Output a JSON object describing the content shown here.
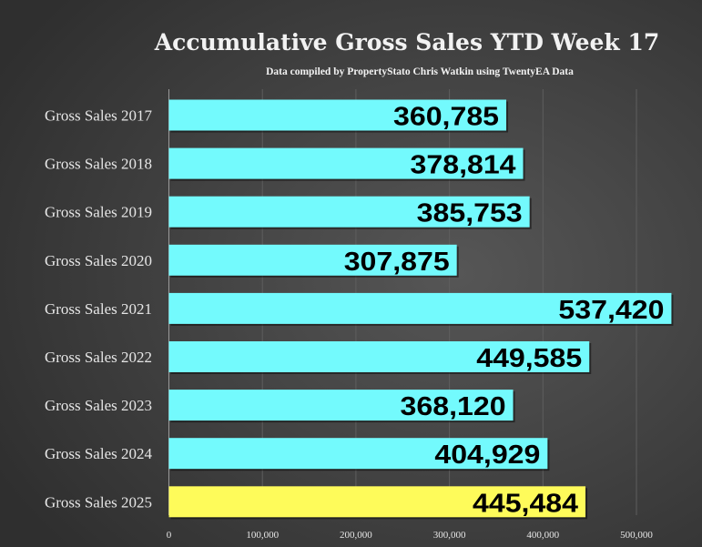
{
  "chart_data": {
    "type": "bar",
    "orientation": "horizontal",
    "title": "Accumulative Gross Sales YTD Week 17",
    "subtitle": "Data compiled by PropertyStato Chris Watkin using TwentyEA Data",
    "categories": [
      "Gross Sales 2017",
      "Gross Sales 2018",
      "Gross Sales 2019",
      "Gross Sales 2020",
      "Gross Sales 2021",
      "Gross Sales 2022",
      "Gross Sales 2023",
      "Gross Sales 2024",
      "Gross Sales 2025"
    ],
    "values": [
      360785,
      378814,
      385753,
      307875,
      537420,
      449585,
      368120,
      404929,
      445484
    ],
    "value_labels": [
      "360,785",
      "378,814",
      "385,753",
      "307,875",
      "537,420",
      "449,585",
      "368,120",
      "404,929",
      "445,484"
    ],
    "xlim": [
      0,
      550000
    ],
    "xticks": [
      0,
      100000,
      200000,
      300000,
      400000,
      500000
    ],
    "xtick_labels": [
      "0",
      "100,000",
      "200,000",
      "300,000",
      "400,000",
      "500,000"
    ],
    "grid": true,
    "colors": {
      "default_bar": "#73fafd",
      "highlight_bar": "#fefb5a",
      "highlight_category": "Gross Sales 2025",
      "background": "#3a3a3a"
    }
  }
}
